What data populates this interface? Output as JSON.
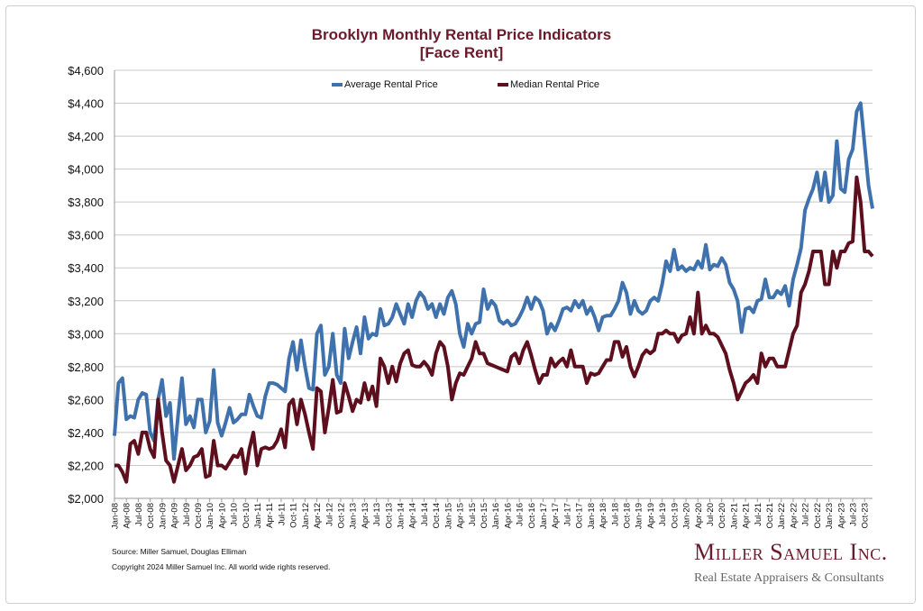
{
  "chart_data": {
    "type": "line",
    "title": "Brooklyn Monthly Rental Price Indicators",
    "subtitle": "[Face Rent]",
    "xlabel": "",
    "ylabel": "",
    "ylim": [
      2000,
      4600
    ],
    "y_ticks": [
      2000,
      2200,
      2400,
      2600,
      2800,
      3000,
      3200,
      3400,
      3600,
      3800,
      4000,
      4200,
      4400,
      4600
    ],
    "y_tick_labels": [
      "$2,000",
      "$2,200",
      "$2,400",
      "$2,600",
      "$2,800",
      "$3,000",
      "$3,200",
      "$3,400",
      "$3,600",
      "$3,800",
      "$4,000",
      "$4,200",
      "$4,400",
      "$4,600"
    ],
    "x_range": [
      "Jan-08",
      "Dec-23"
    ],
    "x_tick_labels": [
      "Jan-08",
      "Apr-08",
      "Jul-08",
      "Oct-08",
      "Jan-09",
      "Apr-09",
      "Jul-09",
      "Oct-09",
      "Jan-10",
      "Apr-10",
      "Jul-10",
      "Oct-10",
      "Jan-11",
      "Apr-11",
      "Jul-11",
      "Oct-11",
      "Jan-12",
      "Apr-12",
      "Jul-12",
      "Oct-12",
      "Jan-13",
      "Apr-13",
      "Jul-13",
      "Oct-13",
      "Jan-14",
      "Apr-14",
      "Jul-14",
      "Oct-14",
      "Jan-15",
      "Apr-15",
      "Jul-15",
      "Oct-15",
      "Jan-16",
      "Apr-16",
      "Jul-16",
      "Oct-16",
      "Jan-17",
      "Apr-17",
      "Jul-17",
      "Oct-17",
      "Jan-18",
      "Apr-18",
      "Jul-18",
      "Oct-18",
      "Jan-19",
      "Apr-19",
      "Jul-19",
      "Oct-19",
      "Jan-20",
      "Apr-20",
      "Jul-20",
      "Oct-20",
      "Jan-21",
      "Apr-21",
      "Jul-21",
      "Oct-21",
      "Jan-22",
      "Apr-22",
      "Jul-22",
      "Oct-22",
      "Jan-23",
      "Apr-23",
      "Jul-23",
      "Oct-23"
    ],
    "grid": true,
    "legend_placement": "top-center",
    "series": [
      {
        "name": "Average Rental Price",
        "color": "#3f72ad",
        "values": [
          2380,
          2700,
          2730,
          2480,
          2500,
          2490,
          2600,
          2640,
          2630,
          2400,
          2350,
          2600,
          2720,
          2500,
          2580,
          2240,
          2500,
          2730,
          2450,
          2500,
          2430,
          2600,
          2600,
          2400,
          2470,
          2780,
          2460,
          2380,
          2460,
          2550,
          2460,
          2480,
          2510,
          2510,
          2630,
          2560,
          2500,
          2490,
          2620,
          2700,
          2700,
          2690,
          2670,
          2650,
          2850,
          2950,
          2780,
          2960,
          2800,
          2670,
          2660,
          3000,
          3050,
          2750,
          2800,
          3000,
          2750,
          2700,
          3030,
          2850,
          2950,
          3040,
          2880,
          3100,
          2970,
          3000,
          2990,
          3150,
          3050,
          3060,
          3100,
          3180,
          3120,
          3060,
          3180,
          3100,
          3200,
          3250,
          3220,
          3150,
          3180,
          3100,
          3180,
          3120,
          3220,
          3260,
          3180,
          3000,
          2920,
          3060,
          3000,
          3060,
          3070,
          3270,
          3150,
          3200,
          3170,
          3080,
          3060,
          3080,
          3050,
          3060,
          3100,
          3150,
          3220,
          3150,
          3220,
          3200,
          3140,
          3000,
          3060,
          3020,
          3080,
          3150,
          3160,
          3140,
          3200,
          3160,
          3200,
          3120,
          3160,
          3100,
          3020,
          3100,
          3110,
          3110,
          3150,
          3200,
          3310,
          3250,
          3120,
          3200,
          3140,
          3120,
          3140,
          3200,
          3220,
          3200,
          3300,
          3440,
          3380,
          3510,
          3390,
          3410,
          3380,
          3400,
          3390,
          3440,
          3400,
          3540,
          3390,
          3420,
          3410,
          3460,
          3420,
          3310,
          3270,
          3200,
          3010,
          3150,
          3160,
          3130,
          3200,
          3210,
          3330,
          3220,
          3220,
          3260,
          3240,
          3290,
          3170,
          3330,
          3420,
          3520,
          3750,
          3820,
          3880,
          3980,
          3810,
          3980,
          3800,
          3840,
          4170,
          3880,
          3860,
          4060,
          4120,
          4350,
          4400,
          4150,
          3900,
          3760
        ]
      },
      {
        "name": "Median Rental Price",
        "color": "#5e0f1e",
        "values": [
          2200,
          2200,
          2160,
          2100,
          2330,
          2350,
          2270,
          2400,
          2400,
          2300,
          2250,
          2600,
          2400,
          2230,
          2200,
          2100,
          2200,
          2300,
          2170,
          2200,
          2250,
          2260,
          2300,
          2130,
          2140,
          2350,
          2200,
          2200,
          2180,
          2220,
          2260,
          2250,
          2300,
          2150,
          2300,
          2400,
          2200,
          2300,
          2310,
          2300,
          2310,
          2350,
          2420,
          2310,
          2570,
          2600,
          2450,
          2600,
          2510,
          2400,
          2300,
          2670,
          2650,
          2400,
          2550,
          2720,
          2520,
          2530,
          2700,
          2620,
          2530,
          2600,
          2580,
          2700,
          2600,
          2680,
          2560,
          2850,
          2800,
          2700,
          2800,
          2710,
          2820,
          2880,
          2900,
          2810,
          2800,
          2800,
          2830,
          2800,
          2750,
          2880,
          2950,
          2920,
          2800,
          2600,
          2700,
          2760,
          2750,
          2800,
          2850,
          2950,
          2880,
          2880,
          2820,
          2810,
          2800,
          2790,
          2780,
          2770,
          2860,
          2880,
          2820,
          2900,
          2950,
          2870,
          2780,
          2700,
          2750,
          2750,
          2850,
          2800,
          2830,
          2850,
          2800,
          2900,
          2800,
          2800,
          2800,
          2700,
          2760,
          2750,
          2760,
          2800,
          2840,
          2840,
          2950,
          2950,
          2860,
          2920,
          2800,
          2740,
          2800,
          2870,
          2900,
          2880,
          2900,
          3000,
          3000,
          3020,
          3000,
          3000,
          2950,
          2990,
          3000,
          3100,
          3000,
          3250,
          3000,
          3050,
          3000,
          3000,
          2980,
          2930,
          2880,
          2780,
          2700,
          2600,
          2650,
          2700,
          2720,
          2750,
          2700,
          2880,
          2800,
          2850,
          2850,
          2800,
          2800,
          2800,
          2900,
          3000,
          3050,
          3250,
          3300,
          3380,
          3500,
          3500,
          3500,
          3300,
          3300,
          3500,
          3400,
          3500,
          3500,
          3550,
          3560,
          3950,
          3800,
          3500,
          3500,
          3470
        ]
      }
    ]
  },
  "footer": {
    "source": "Source: Miller Samuel, Douglas Elliman",
    "copyright": "Copyright 2024 Miller Samuel Inc.  All world wide rights reserved."
  },
  "logo": {
    "name": "Miller Samuel Inc.",
    "tagline": "Real Estate Appraisers & Consultants"
  }
}
